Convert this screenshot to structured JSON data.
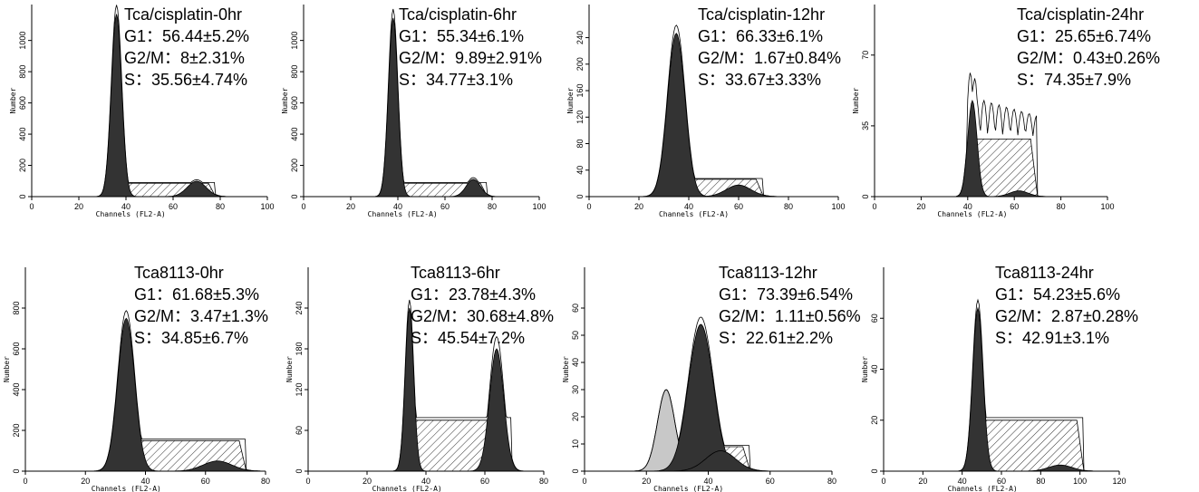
{
  "panels": [
    {
      "title": "Tca/cisplatin-0hr",
      "stats": [
        "G1：56.44±5.2%",
        "G2/M：8±2.31%",
        "S：35.56±4.74%"
      ],
      "x_label": "Channels (FL2-A)",
      "y_label": "Number",
      "xlim": [
        0,
        100
      ],
      "xticks": [
        0,
        20,
        40,
        60,
        80,
        100
      ],
      "ylim": [
        0,
        1230
      ],
      "yticks": [
        0,
        200,
        400,
        600,
        800,
        1000
      ]
    },
    {
      "title": "Tca/cisplatin-6hr",
      "stats": [
        "G1：55.34±6.1%",
        "G2/M：9.89±2.91%",
        "S：34.77±3.1%"
      ],
      "x_label": "Channels (FL2-A)",
      "y_label": "Number",
      "xlim": [
        0,
        100
      ],
      "xticks": [
        0,
        20,
        40,
        60,
        80,
        100
      ],
      "ylim": [
        0,
        1230
      ],
      "yticks": [
        0,
        200,
        400,
        600,
        800,
        1000
      ]
    },
    {
      "title": "Tca/cisplatin-12hr",
      "stats": [
        "G1：66.33±6.1%",
        "G2/M：1.67±0.84%",
        "S：33.67±3.33%"
      ],
      "x_label": "Channels (FL2-A)",
      "y_label": "Number",
      "xlim": [
        0,
        100
      ],
      "xticks": [
        0,
        20,
        40,
        60,
        80,
        100
      ],
      "ylim": [
        0,
        290
      ],
      "yticks": [
        0,
        40,
        80,
        120,
        160,
        200,
        240
      ]
    },
    {
      "title": "Tca/cisplatin-24hr",
      "stats": [
        "G1：25.65±6.74%",
        "G2/M：0.43±0.26%",
        "S：74.35±7.9%"
      ],
      "x_label": "Channels (FL2-A)",
      "y_label": "Number",
      "xlim": [
        0,
        100
      ],
      "xticks": [
        0,
        20,
        40,
        60,
        80,
        100
      ],
      "ylim": [
        0,
        95
      ],
      "yticks": [
        0,
        35,
        70
      ]
    },
    {
      "title": "Tca8113-0hr",
      "stats": [
        "G1：61.68±5.3%",
        "G2/M：3.47±1.3%",
        "S：34.85±6.7%"
      ],
      "x_label": "Channels (FL2-A)",
      "y_label": "Number",
      "xlim": [
        0,
        80
      ],
      "xticks": [
        0,
        20,
        40,
        60,
        80
      ],
      "ylim": [
        0,
        1000
      ],
      "yticks": [
        0,
        200,
        400,
        600,
        800
      ]
    },
    {
      "title": "Tca8113-6hr",
      "stats": [
        "G1：23.78±4.3%",
        "G2/M：30.68±4.8%",
        "S：45.54±7.2%"
      ],
      "x_label": "Channels (FL2-A)",
      "y_label": "Number",
      "xlim": [
        0,
        80
      ],
      "xticks": [
        0,
        20,
        40,
        60,
        80
      ],
      "ylim": [
        0,
        300
      ],
      "yticks": [
        0,
        60,
        120,
        180,
        240
      ]
    },
    {
      "title": "Tca8113-12hr",
      "stats": [
        "G1：73.39±6.54%",
        "G2/M：1.11±0.56%",
        "S：22.61±2.2%"
      ],
      "x_label": "Channels (FL2-A)",
      "y_label": "Number",
      "xlim": [
        0,
        80
      ],
      "xticks": [
        0,
        20,
        40,
        60,
        80
      ],
      "ylim": [
        0,
        75
      ],
      "yticks": [
        0,
        10,
        20,
        30,
        40,
        50,
        60
      ]
    },
    {
      "title": "Tca8113-24hr",
      "stats": [
        "G1：54.23±5.6%",
        "G2/M：2.87±0.28%",
        "S：42.91±3.1%"
      ],
      "x_label": "Channels (FL2-A)",
      "y_label": "Number",
      "xlim": [
        0,
        120
      ],
      "xticks": [
        0,
        20,
        40,
        60,
        80,
        100,
        120
      ],
      "ylim": [
        0,
        80
      ],
      "yticks": [
        0,
        20,
        40,
        60
      ]
    }
  ]
}
